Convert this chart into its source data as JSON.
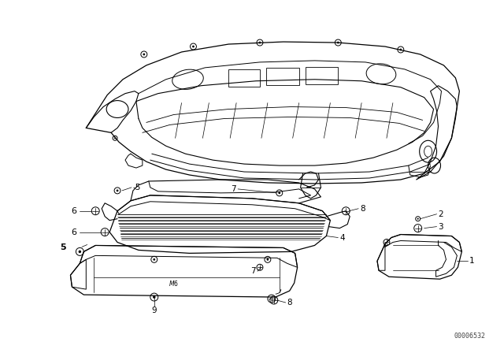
{
  "background_color": "#ffffff",
  "fig_width": 6.4,
  "fig_height": 4.48,
  "dpi": 100,
  "diagram_code": "00006532",
  "line_color": "#000000",
  "stroke_width": 0.8
}
